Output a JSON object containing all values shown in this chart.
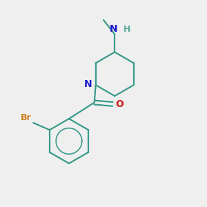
{
  "background_color": "#efefef",
  "bond_color": "#3a9a8a",
  "N_color": "#1a1acc",
  "O_color": "#cc1a1a",
  "Br_color": "#cc8020",
  "H_color": "#5aaa9a",
  "line_width": 1.6,
  "figsize": [
    3.0,
    3.0
  ],
  "dpi": 100,
  "xlim": [
    0,
    10
  ],
  "ylim": [
    0,
    10
  ]
}
